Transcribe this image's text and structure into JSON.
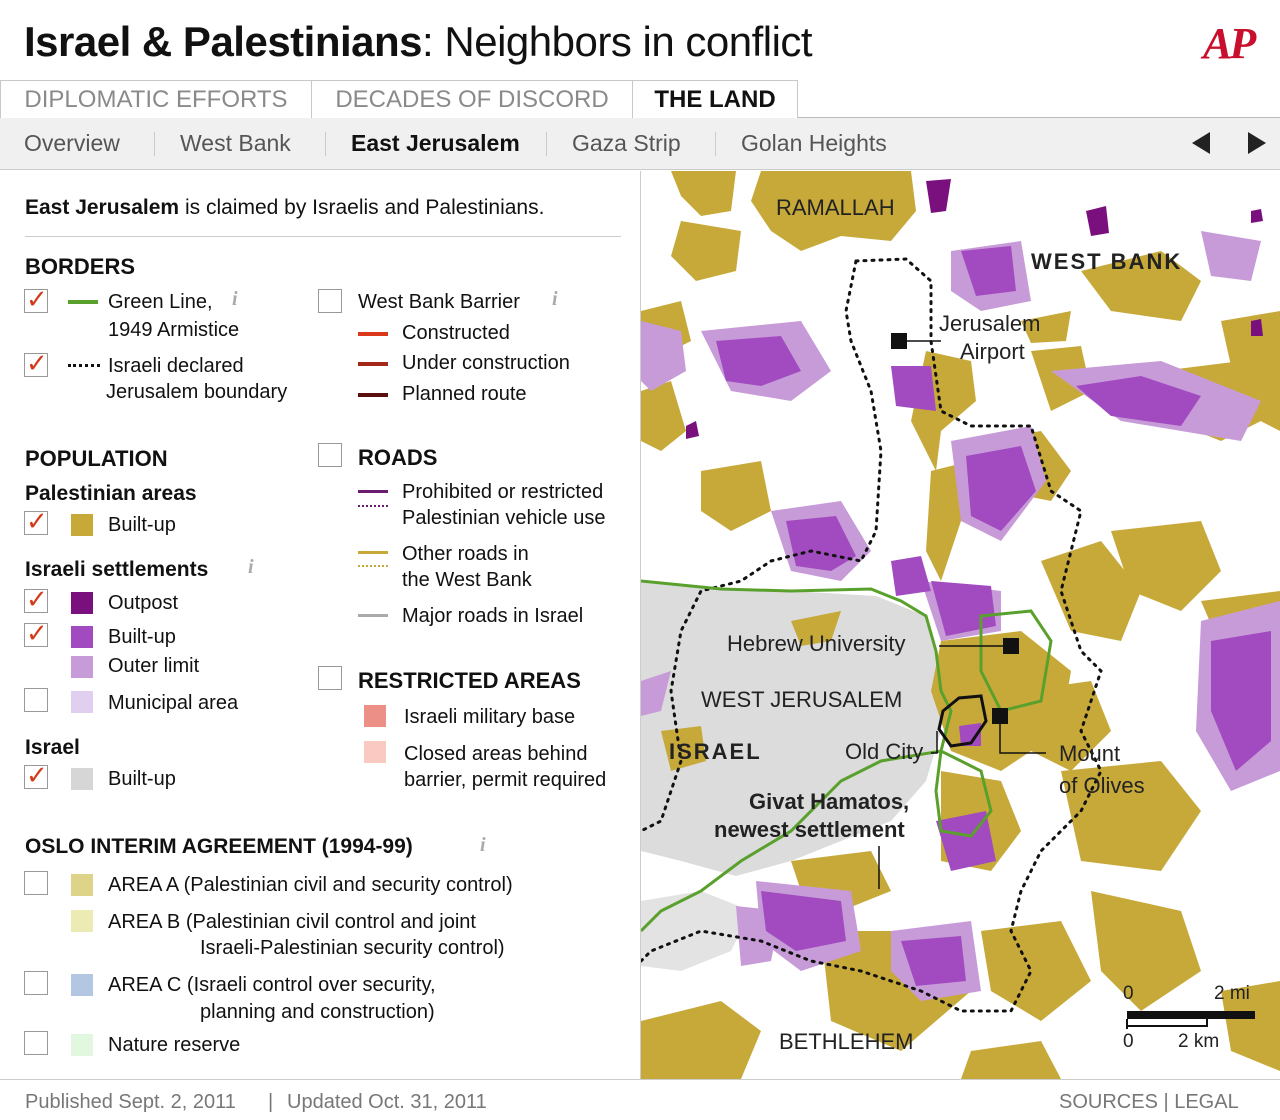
{
  "header": {
    "title_bold": "Israel & Palestinians",
    "title_rest": ": Neighbors in conflict",
    "logo": "AP"
  },
  "tabs": [
    {
      "label": "DIPLOMATIC EFFORTS"
    },
    {
      "label": "DECADES OF DISCORD"
    },
    {
      "label": "THE LAND",
      "active": true
    }
  ],
  "subnav": [
    {
      "label": "Overview"
    },
    {
      "label": "West Bank"
    },
    {
      "label": "East Jerusalem",
      "active": true
    },
    {
      "label": "Gaza Strip"
    },
    {
      "label": "Golan Heights"
    }
  ],
  "intro": {
    "bold": "East Jerusalem",
    "rest": " is claimed by Israelis and Palestinians."
  },
  "legend": {
    "borders": {
      "title": "BORDERS",
      "green_line": [
        "Green Line,",
        "1949 Armistice"
      ],
      "jer_boundary": [
        "Israeli declared",
        "Jerusalem boundary"
      ],
      "barrier_title": "West Bank Barrier",
      "constructed": "Constructed",
      "under_construction": "Under construction",
      "planned": "Planned route"
    },
    "population": {
      "title": "POPULATION",
      "pal_title": "Palestinian areas",
      "pal_builtup": "Built-up",
      "settle_title": "Israeli settlements",
      "outpost": "Outpost",
      "builtup": "Built-up",
      "outer": "Outer limit",
      "municipal": "Municipal area",
      "israel_title": "Israel",
      "israel_builtup": "Built-up"
    },
    "roads": {
      "title": "ROADS",
      "prohibited": [
        "Prohibited or restricted",
        "Palestinian vehicle use"
      ],
      "other": [
        "Other roads in",
        "the West Bank"
      ],
      "major": "Major roads in Israel"
    },
    "restricted": {
      "title": "RESTRICTED AREAS",
      "military": "Israeli military base",
      "closed": [
        "Closed areas behind",
        "barrier, permit required"
      ]
    },
    "oslo": {
      "title": "OSLO INTERIM AGREEMENT (1994-99)",
      "a": "AREA A (Palestinian civil and security control)",
      "b": [
        "AREA B (Palestinian civil control and joint",
        "Israeli-Palestinian security control)"
      ],
      "c": [
        "AREA C (Israeli control over security,",
        "planning and construction)"
      ],
      "nature": "Nature reserve"
    }
  },
  "colors": {
    "pal": "#c7a93a",
    "outpost": "#7a0f7e",
    "settle": "#a24bc0",
    "outer": "#c79bd8",
    "municipal": "#e0cfee",
    "israel": "#d6d6d6",
    "green": "#5aa02c",
    "constructed": "#d9391a",
    "under": "#a4271a",
    "planned": "#5b1010",
    "prohibited": "#6a1d6e",
    "other_road": "#c7a93a",
    "major_road": "#aaaaaa",
    "military": "#ec8f86",
    "closed": "#f9c9c2",
    "areaA": "#ddd48a",
    "areaB": "#ecebb3",
    "areaC": "#b3c7e3",
    "nature": "#e1f7df"
  },
  "map": {
    "ramallah": "RAMALLAH",
    "westbank": "WEST BANK",
    "airport": [
      "Jerusalem",
      "Airport"
    ],
    "hebrew": "Hebrew University",
    "westjer": "WEST JERUSALEM",
    "israel": "ISRAEL",
    "oldcity": "Old City",
    "olives": [
      "Mount",
      "of Olives"
    ],
    "givat": [
      "Givat Hamatos,",
      "newest settlement"
    ],
    "bethlehem": "BETHLEHEM",
    "scale": {
      "mi0": "0",
      "mi2": "2 mi",
      "km0": "0",
      "km2": "2 km"
    }
  },
  "footer": {
    "published": "Published Sept. 2, 2011",
    "updated": "Updated Oct. 31, 2011",
    "links": "SOURCES | LEGAL",
    "sep": "|"
  }
}
